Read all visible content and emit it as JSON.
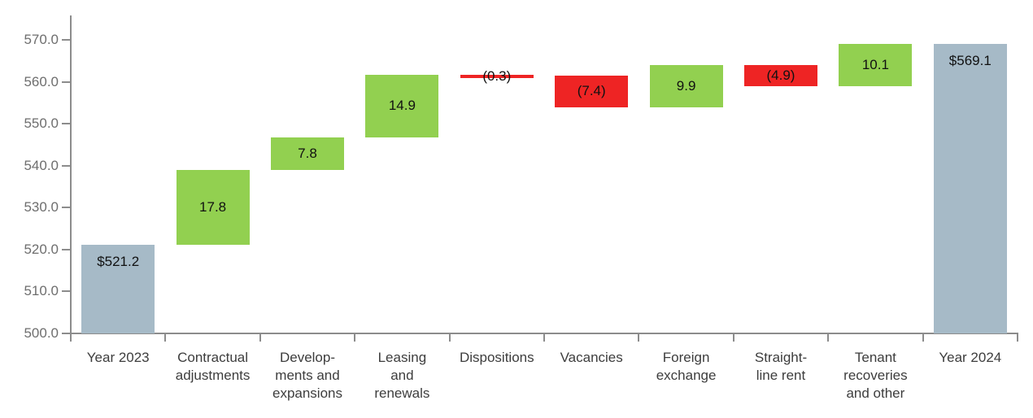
{
  "chart_data": {
    "type": "bar",
    "subtype": "waterfall",
    "title": "",
    "xlabel": "",
    "ylabel": "",
    "ylim": [
      500,
      570
    ],
    "y_tick_step": 10,
    "y_tick_labels": [
      "500.0",
      "510.0",
      "520.0",
      "530.0",
      "540.0",
      "550.0",
      "560.0",
      "570.0"
    ],
    "grid": false,
    "legend": false,
    "bars": [
      {
        "category": "Year 2023",
        "label_lines": [
          "Year 2023"
        ],
        "kind": "total",
        "value": 521.2,
        "display": "$521.2",
        "start": 500.0,
        "end": 521.2
      },
      {
        "category": "Contractual adjustments",
        "label_lines": [
          "Contractual",
          "adjustments"
        ],
        "kind": "increase",
        "value": 17.8,
        "display": "17.8",
        "start": 521.2,
        "end": 539.0
      },
      {
        "category": "Developments and expansions",
        "label_lines": [
          "Develop-",
          "ments and",
          "expansions"
        ],
        "kind": "increase",
        "value": 7.8,
        "display": "7.8",
        "start": 539.0,
        "end": 546.8
      },
      {
        "category": "Leasing and renewals",
        "label_lines": [
          "Leasing",
          "and",
          "renewals"
        ],
        "kind": "increase",
        "value": 14.9,
        "display": "14.9",
        "start": 546.8,
        "end": 561.7
      },
      {
        "category": "Dispositions",
        "label_lines": [
          "Dispositions"
        ],
        "kind": "decrease",
        "value": -0.3,
        "display": "(0.3)",
        "start": 561.7,
        "end": 561.4
      },
      {
        "category": "Vacancies",
        "label_lines": [
          "Vacancies"
        ],
        "kind": "decrease",
        "value": -7.4,
        "display": "(7.4)",
        "start": 561.4,
        "end": 554.0
      },
      {
        "category": "Foreign exchange",
        "label_lines": [
          "Foreign",
          "exchange"
        ],
        "kind": "increase",
        "value": 9.9,
        "display": "9.9",
        "start": 554.0,
        "end": 563.9
      },
      {
        "category": "Straight-line rent",
        "label_lines": [
          "Straight-",
          "line rent"
        ],
        "kind": "decrease",
        "value": -4.9,
        "display": "(4.9)",
        "start": 563.9,
        "end": 559.0
      },
      {
        "category": "Tenant recoveries and other",
        "label_lines": [
          "Tenant",
          "recoveries",
          "and other"
        ],
        "kind": "increase",
        "value": 10.1,
        "display": "10.1",
        "start": 559.0,
        "end": 569.1
      },
      {
        "category": "Year 2024",
        "label_lines": [
          "Year 2024"
        ],
        "kind": "total",
        "value": 569.1,
        "display": "$569.1",
        "start": 500.0,
        "end": 569.1
      }
    ],
    "colors": {
      "increase": "#92D050",
      "decrease": "#EE2424",
      "total": "#A6BAC7",
      "axis": "#8C8C8C",
      "y_tick_label": "#6E6E6E",
      "category_label": "#3D3D3D",
      "value_label": "#111111",
      "background": "#FFFFFF"
    }
  }
}
